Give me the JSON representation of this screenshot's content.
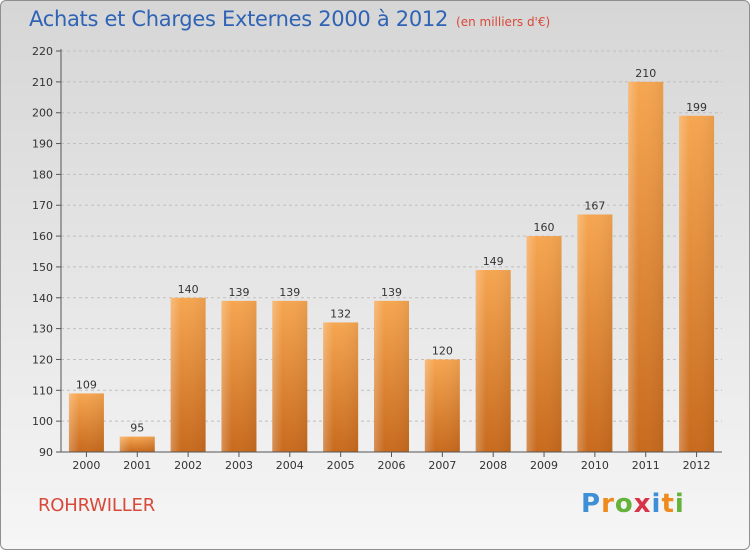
{
  "header": {
    "title": "Achats et Charges Externes 2000 à 2012",
    "subtitle": "(en milliers d'€)"
  },
  "footer": {
    "city": "ROHRWILLER",
    "brand": "Proxiti",
    "brand_letters": [
      {
        "ch": "P",
        "color": "#3f8fd6"
      },
      {
        "ch": "r",
        "color": "#ef8a1f"
      },
      {
        "ch": "o",
        "color": "#65b33a"
      },
      {
        "ch": "x",
        "color": "#d9334a"
      },
      {
        "ch": "i",
        "color": "#3f8fd6"
      },
      {
        "ch": "t",
        "color": "#ef8a1f"
      },
      {
        "ch": "i",
        "color": "#65b33a"
      }
    ]
  },
  "colors": {
    "bar_light": "#f6a651",
    "bar_dark": "#c86a1d",
    "axis": "#555555",
    "grid": "#bfbfbf"
  },
  "chart_data": {
    "type": "bar",
    "categories": [
      "2000",
      "2001",
      "2002",
      "2003",
      "2004",
      "2005",
      "2006",
      "2007",
      "2008",
      "2009",
      "2010",
      "2011",
      "2012"
    ],
    "values": [
      109,
      95,
      140,
      139,
      139,
      132,
      139,
      120,
      149,
      160,
      167,
      210,
      199
    ],
    "ylim": [
      90,
      220
    ],
    "yticks": [
      90,
      100,
      110,
      120,
      130,
      140,
      150,
      160,
      170,
      180,
      190,
      200,
      210,
      220
    ],
    "grid": "horizontal",
    "data_labels": true
  }
}
